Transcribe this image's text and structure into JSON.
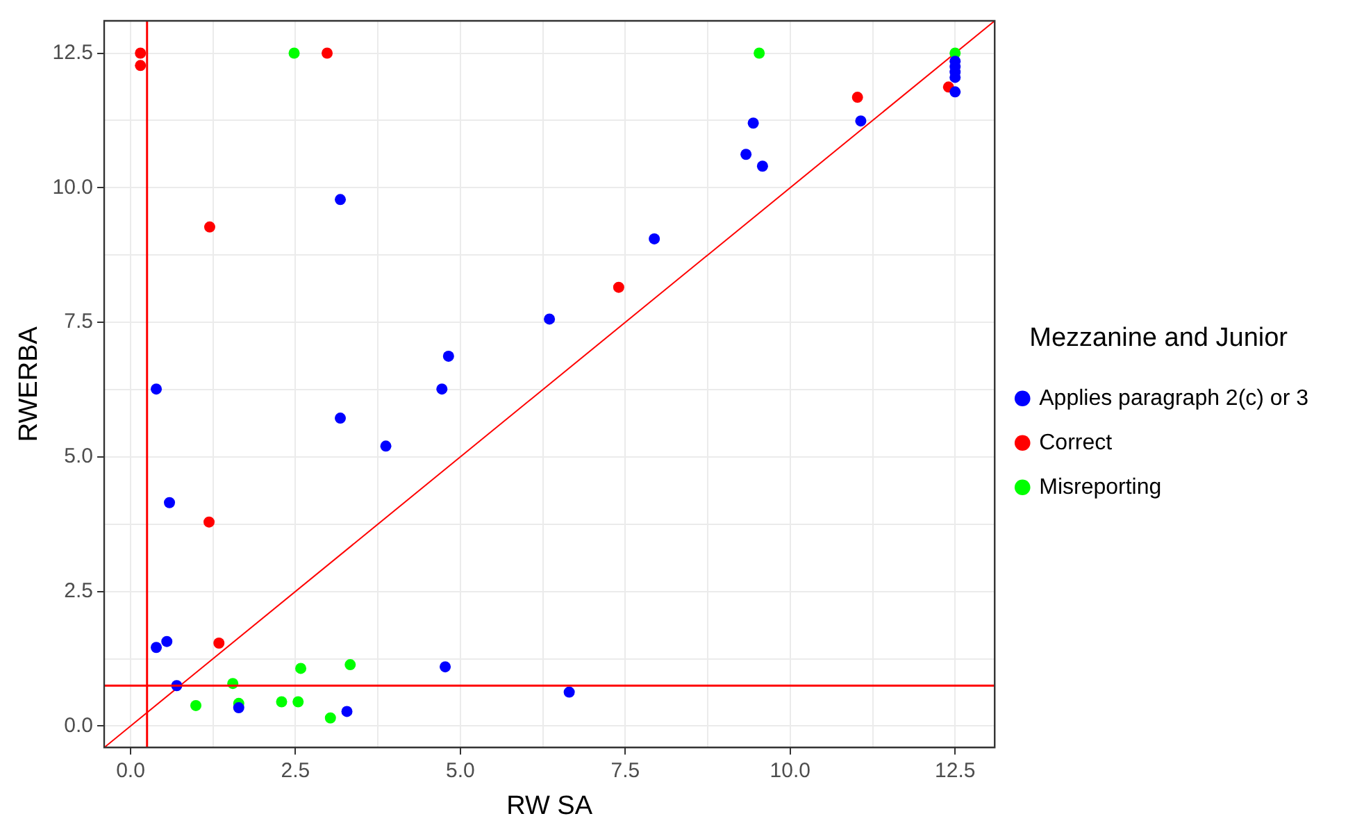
{
  "chart_data": {
    "type": "scatter",
    "xlabel": "RW SA",
    "ylabel": "RWERBA",
    "legend_title": "Mezzanine and Junior",
    "legend": "right",
    "marker": "circle",
    "grid": true,
    "xlim": [
      -0.4,
      13.1
    ],
    "ylim": [
      -0.4,
      13.1
    ],
    "xticks": [
      {
        "value": 0,
        "label": "0.0"
      },
      {
        "value": 1.25,
        "label": null
      },
      {
        "value": 2.5,
        "label": "2.5"
      },
      {
        "value": 3.75,
        "label": null
      },
      {
        "value": 5,
        "label": "5.0"
      },
      {
        "value": 6.25,
        "label": null
      },
      {
        "value": 7.5,
        "label": "7.5"
      },
      {
        "value": 8.75,
        "label": null
      },
      {
        "value": 10,
        "label": "10.0"
      },
      {
        "value": 11.25,
        "label": null
      },
      {
        "value": 12.5,
        "label": "12.5"
      }
    ],
    "yticks": [
      {
        "value": 0,
        "label": "0.0"
      },
      {
        "value": 1.25,
        "label": null
      },
      {
        "value": 2.5,
        "label": "2.5"
      },
      {
        "value": 3.75,
        "label": null
      },
      {
        "value": 5,
        "label": "5.0"
      },
      {
        "value": 6.25,
        "label": null
      },
      {
        "value": 7.5,
        "label": "7.5"
      },
      {
        "value": 8.75,
        "label": null
      },
      {
        "value": 10,
        "label": "10.0"
      },
      {
        "value": 11.25,
        "label": null
      },
      {
        "value": 12.5,
        "label": "12.5"
      }
    ],
    "ref_lines": [
      {
        "axis": "x",
        "value": 0.25,
        "color": "#ff0000"
      },
      {
        "axis": "y",
        "value": 0.75,
        "color": "#ff0000"
      }
    ],
    "series": [
      {
        "name": "Applies paragraph 2(c) or 3",
        "color": "#0000ff",
        "x": [
          3.18,
          4.82,
          6.35,
          11.07,
          9.44,
          9.33,
          9.58,
          7.94,
          12.5,
          12.5,
          12.5,
          12.5,
          12.5,
          0.39,
          4.72,
          3.18,
          3.87,
          0.59,
          0.39,
          0.55,
          4.77,
          0.7,
          1.64,
          3.28,
          6.65
        ],
        "values": [
          9.78,
          6.87,
          7.56,
          11.24,
          11.2,
          10.62,
          10.4,
          9.05,
          12.35,
          12.25,
          12.15,
          12.05,
          11.78,
          6.26,
          6.26,
          5.72,
          5.2,
          4.15,
          1.46,
          1.57,
          1.1,
          0.75,
          0.34,
          0.27,
          0.63
        ]
      },
      {
        "name": "Correct",
        "color": "#ff0000",
        "x": [
          0.15,
          0.15,
          2.98,
          1.2,
          11.02,
          7.4,
          12.4,
          1.19,
          1.34
        ],
        "values": [
          12.5,
          12.27,
          12.5,
          9.27,
          11.68,
          8.15,
          11.87,
          3.79,
          1.54
        ]
      },
      {
        "name": "Misreporting",
        "color": "#00ff00",
        "x": [
          2.48,
          9.53,
          12.5,
          3.33,
          2.58,
          1.55,
          0.99,
          1.64,
          2.29,
          2.54,
          3.03
        ],
        "values": [
          12.5,
          12.5,
          12.5,
          1.14,
          1.07,
          0.79,
          0.38,
          0.42,
          0.45,
          0.45,
          0.15
        ]
      },
      {
        "type": "line",
        "marker": "none",
        "color": "#ff0000",
        "x": [
          -0.4,
          13.1
        ],
        "values": [
          -0.4,
          13.1
        ]
      }
    ]
  }
}
